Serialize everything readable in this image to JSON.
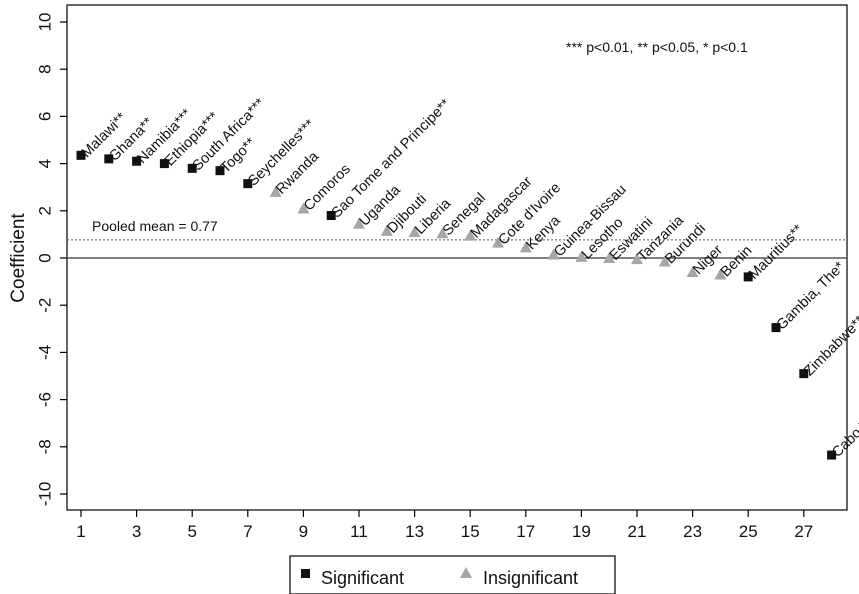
{
  "chart_data": {
    "type": "scatter",
    "ylabel": "Coefficient",
    "xlabel": "",
    "xlim": [
      0.5,
      28.5
    ],
    "ylim": [
      -10.5,
      10.5
    ],
    "xticks": [
      1,
      3,
      5,
      7,
      9,
      11,
      13,
      15,
      17,
      19,
      21,
      23,
      25,
      27
    ],
    "yticks": [
      10,
      8,
      6,
      4,
      2,
      0,
      -2,
      -4,
      -6,
      -8,
      -10
    ],
    "pooled_mean": 0.77,
    "pooled_mean_label": "Pooled mean = 0.77",
    "significance_note": "*** p<0.01, ** p<0.05, * p<0.1",
    "legend": {
      "position": "bottom",
      "significant": "Significant",
      "insignificant": "Insignificant"
    },
    "colors": {
      "significant": "#111111",
      "insignificant": "#a6a6a6"
    },
    "points": [
      {
        "x": 1,
        "y": 4.35,
        "label": "Malawi**",
        "sig": true
      },
      {
        "x": 2,
        "y": 4.2,
        "label": "Ghana**",
        "sig": true
      },
      {
        "x": 3,
        "y": 4.1,
        "label": "Namibia***",
        "sig": true
      },
      {
        "x": 4,
        "y": 4.0,
        "label": "Ethiopia***",
        "sig": true
      },
      {
        "x": 5,
        "y": 3.8,
        "label": "South Africa***",
        "sig": true
      },
      {
        "x": 6,
        "y": 3.7,
        "label": "Togo**",
        "sig": true
      },
      {
        "x": 7,
        "y": 3.15,
        "label": "Seychelles***",
        "sig": true
      },
      {
        "x": 8,
        "y": 2.8,
        "label": "Rwanda",
        "sig": false
      },
      {
        "x": 9,
        "y": 2.1,
        "label": "Comoros",
        "sig": false
      },
      {
        "x": 10,
        "y": 1.8,
        "label": "Sao Tome and Principe**",
        "sig": true
      },
      {
        "x": 11,
        "y": 1.45,
        "label": "Uganda",
        "sig": false
      },
      {
        "x": 12,
        "y": 1.15,
        "label": "Djibouti",
        "sig": false
      },
      {
        "x": 13,
        "y": 1.1,
        "label": "Liberia",
        "sig": false
      },
      {
        "x": 14,
        "y": 1.05,
        "label": "Senegal",
        "sig": false
      },
      {
        "x": 15,
        "y": 0.95,
        "label": "Madagascar",
        "sig": false
      },
      {
        "x": 16,
        "y": 0.65,
        "label": "Cote d'Ivoire",
        "sig": false
      },
      {
        "x": 17,
        "y": 0.45,
        "label": "Kenya",
        "sig": false
      },
      {
        "x": 18,
        "y": 0.15,
        "label": "Guinea-Bissau",
        "sig": false
      },
      {
        "x": 19,
        "y": 0.05,
        "label": "Lesotho",
        "sig": false
      },
      {
        "x": 20,
        "y": 0.0,
        "label": "Eswatini",
        "sig": false
      },
      {
        "x": 21,
        "y": -0.05,
        "label": "Tanzania",
        "sig": false
      },
      {
        "x": 22,
        "y": -0.15,
        "label": "Burundi",
        "sig": false
      },
      {
        "x": 23,
        "y": -0.6,
        "label": "Niger",
        "sig": false
      },
      {
        "x": 24,
        "y": -0.7,
        "label": "Benin",
        "sig": false
      },
      {
        "x": 25,
        "y": -0.8,
        "label": "Mauritius**",
        "sig": true
      },
      {
        "x": 26,
        "y": -2.95,
        "label": "Gambia, The*",
        "sig": true
      },
      {
        "x": 27,
        "y": -4.9,
        "label": "Zimbabwe**",
        "sig": true
      },
      {
        "x": 28,
        "y": -8.35,
        "label": "Cabo Verde***",
        "sig": true
      }
    ]
  }
}
